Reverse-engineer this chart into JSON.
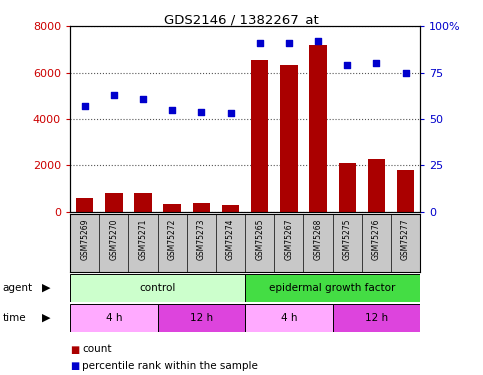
{
  "title": "GDS2146 / 1382267_at",
  "samples": [
    "GSM75269",
    "GSM75270",
    "GSM75271",
    "GSM75272",
    "GSM75273",
    "GSM75274",
    "GSM75265",
    "GSM75267",
    "GSM75268",
    "GSM75275",
    "GSM75276",
    "GSM75277"
  ],
  "bar_values": [
    600,
    800,
    800,
    350,
    380,
    280,
    6550,
    6350,
    7200,
    2100,
    2300,
    1800
  ],
  "scatter_values": [
    57,
    63,
    61,
    55,
    54,
    53,
    91,
    91,
    92,
    79,
    80,
    75
  ],
  "bar_color": "#aa0000",
  "scatter_color": "#0000cc",
  "left_ylim": [
    0,
    8000
  ],
  "right_ylim": [
    0,
    100
  ],
  "left_yticks": [
    0,
    2000,
    4000,
    6000,
    8000
  ],
  "right_yticks": [
    0,
    25,
    50,
    75,
    100
  ],
  "right_yticklabels": [
    "0",
    "25",
    "50",
    "75",
    "100%"
  ],
  "agent_labels": [
    {
      "text": "control",
      "start": 0,
      "end": 6,
      "color": "#ccffcc"
    },
    {
      "text": "epidermal growth factor",
      "start": 6,
      "end": 12,
      "color": "#44dd44"
    }
  ],
  "time_labels": [
    {
      "text": "4 h",
      "start": 0,
      "end": 3,
      "color": "#ffaaff"
    },
    {
      "text": "12 h",
      "start": 3,
      "end": 6,
      "color": "#dd44dd"
    },
    {
      "text": "4 h",
      "start": 6,
      "end": 9,
      "color": "#ffaaff"
    },
    {
      "text": "12 h",
      "start": 9,
      "end": 12,
      "color": "#dd44dd"
    }
  ],
  "legend_count_color": "#aa0000",
  "legend_percentile_color": "#0000cc",
  "grid_color": "#555555",
  "tick_label_color_left": "#cc0000",
  "tick_label_color_right": "#0000cc",
  "plot_bg": "#ffffff",
  "sample_area_bg": "#c8c8c8",
  "figsize": [
    4.83,
    3.75
  ],
  "dpi": 100
}
